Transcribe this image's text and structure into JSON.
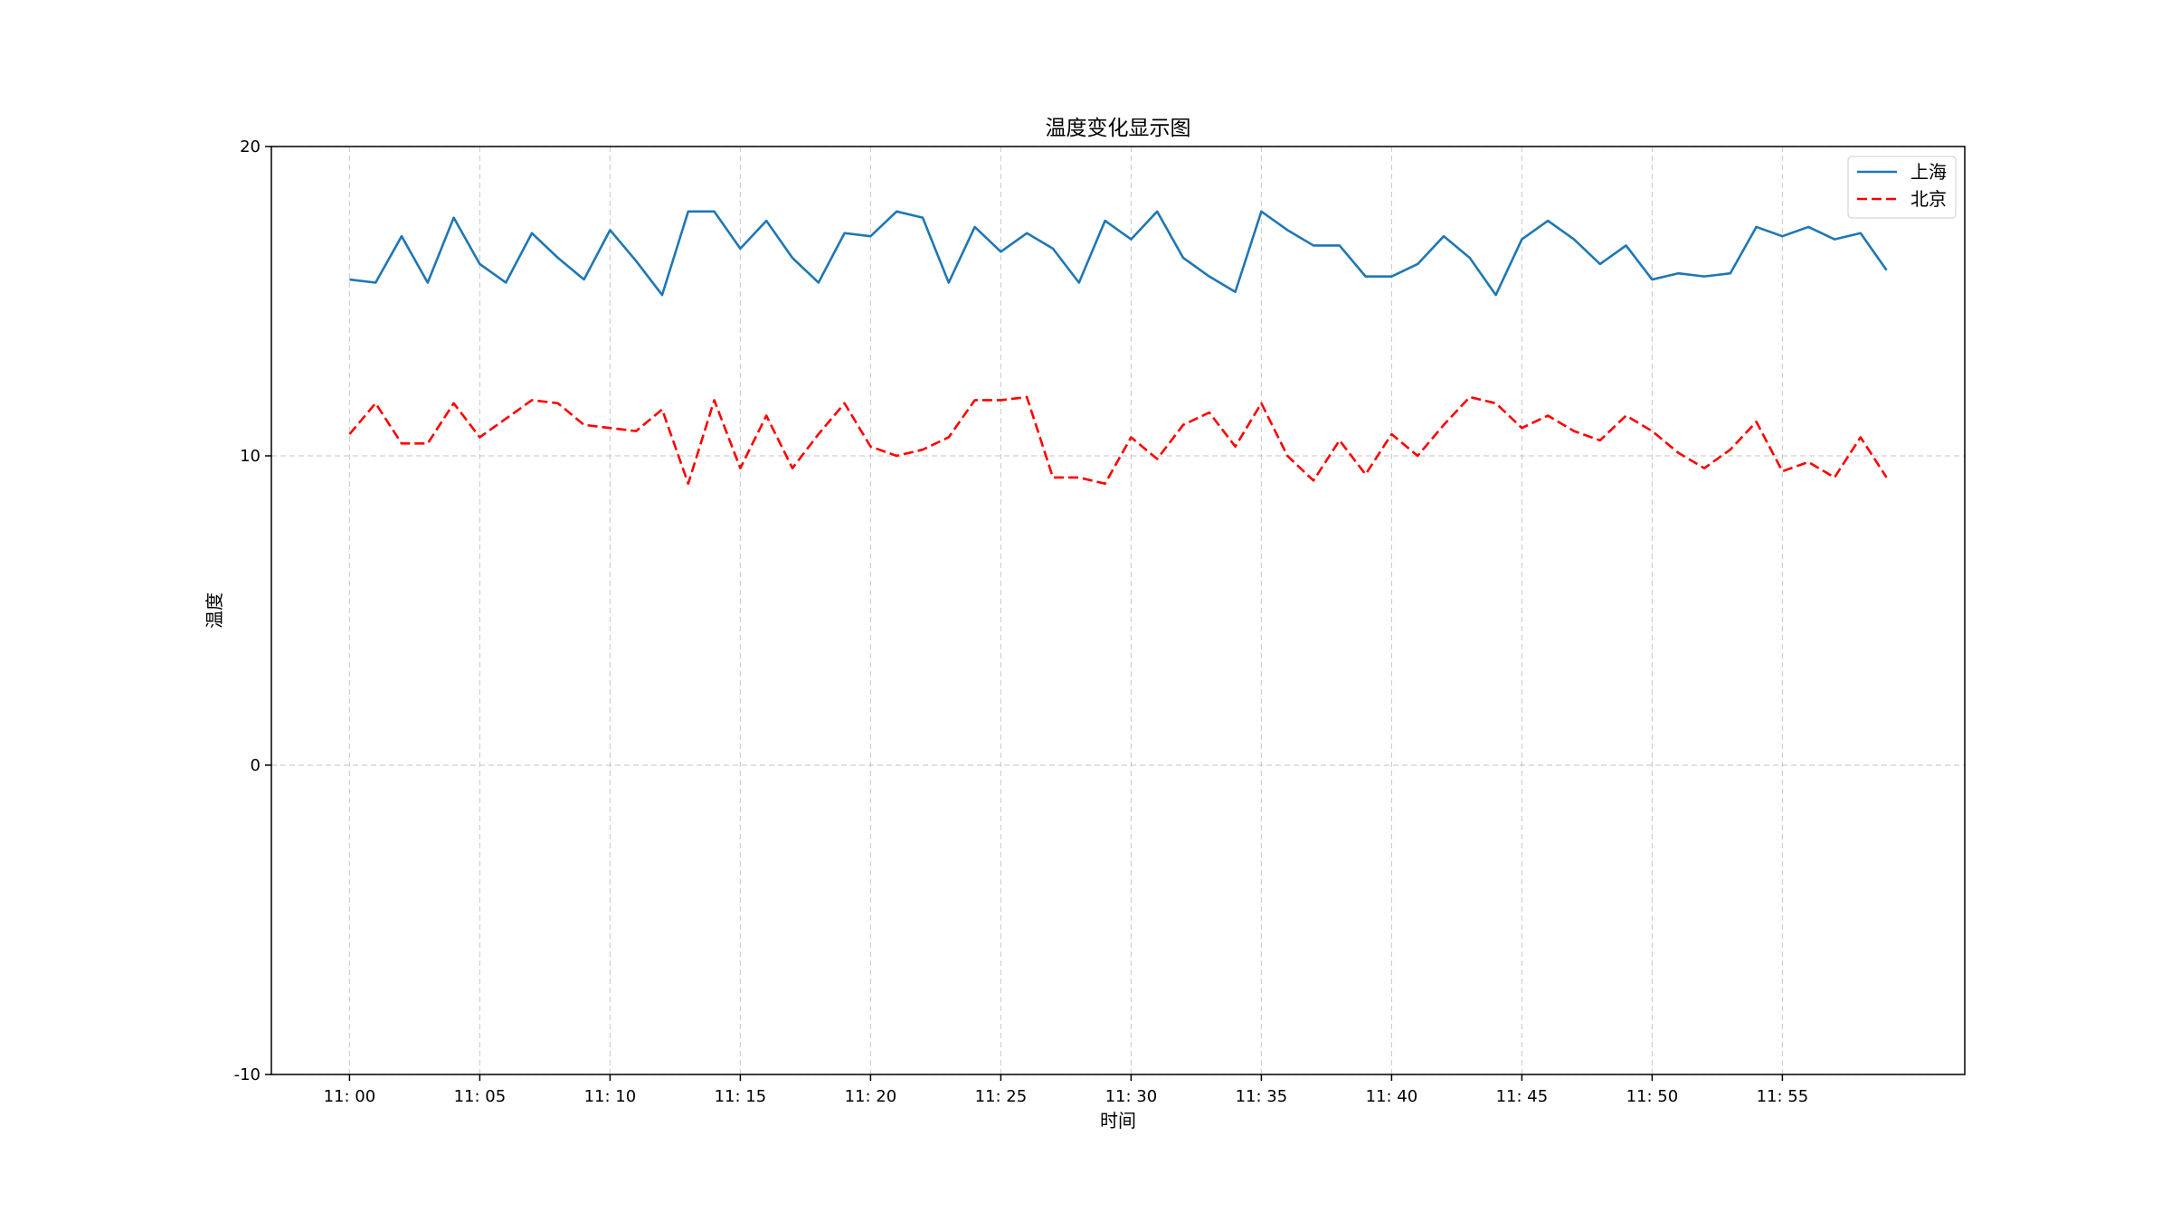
{
  "chart_data": {
    "type": "line",
    "title": "温度变化显示图",
    "xlabel": "时间",
    "ylabel": "温度",
    "ylim": [
      -10,
      20
    ],
    "yticks": [
      -10,
      0,
      10,
      20
    ],
    "xlim": [
      -3,
      62
    ],
    "xtick_labels": [
      "11: 00",
      "11: 05",
      "11: 10",
      "11: 15",
      "11: 20",
      "11: 25",
      "11: 30",
      "11: 35",
      "11: 40",
      "11: 45",
      "11: 50",
      "11: 55"
    ],
    "grid": true,
    "legend_position": "top-right",
    "x": [
      0,
      1,
      2,
      3,
      4,
      5,
      6,
      7,
      8,
      9,
      10,
      11,
      12,
      13,
      14,
      15,
      16,
      17,
      18,
      19,
      20,
      21,
      22,
      23,
      24,
      25,
      26,
      27,
      28,
      29,
      30,
      31,
      32,
      33,
      34,
      35,
      36,
      37,
      38,
      39,
      40,
      41,
      42,
      43,
      44,
      45,
      46,
      47,
      48,
      49,
      50,
      51,
      52,
      53,
      54,
      55,
      56,
      57,
      58,
      59
    ],
    "series": [
      {
        "name": "上海",
        "color": "#1f77b4",
        "style": "solid",
        "values": [
          15.7,
          15.6,
          17.1,
          15.6,
          17.7,
          16.2,
          15.6,
          17.2,
          16.4,
          15.7,
          17.3,
          16.3,
          15.2,
          17.9,
          17.9,
          16.7,
          17.6,
          16.4,
          15.6,
          17.2,
          17.1,
          17.9,
          17.7,
          15.6,
          17.4,
          16.6,
          17.2,
          16.7,
          15.6,
          17.6,
          17.0,
          17.9,
          16.4,
          15.8,
          15.3,
          17.9,
          17.3,
          16.8,
          16.8,
          15.8,
          15.8,
          16.2,
          17.1,
          16.4,
          15.2,
          17.0,
          17.6,
          17.0,
          16.2,
          16.8,
          15.7,
          15.9,
          15.8,
          15.9,
          17.4,
          17.1,
          17.4,
          17.0,
          17.2,
          16.0
        ]
      },
      {
        "name": "北京",
        "color": "#ff0000",
        "style": "dashed",
        "values": [
          10.7,
          11.7,
          10.4,
          10.4,
          11.7,
          10.6,
          11.2,
          11.8,
          11.7,
          11.0,
          10.9,
          10.8,
          11.5,
          9.1,
          11.8,
          9.6,
          11.3,
          9.6,
          10.7,
          11.7,
          10.3,
          10.0,
          10.2,
          10.6,
          11.8,
          11.8,
          11.9,
          9.3,
          9.3,
          9.1,
          10.6,
          9.9,
          11.0,
          11.4,
          10.3,
          11.7,
          10.0,
          9.2,
          10.5,
          9.4,
          10.7,
          10.0,
          11.0,
          11.9,
          11.7,
          10.9,
          11.3,
          10.8,
          10.5,
          11.3,
          10.8,
          10.1,
          9.6,
          10.2,
          11.1,
          9.5,
          9.8,
          9.3,
          10.6,
          9.3
        ]
      }
    ]
  }
}
